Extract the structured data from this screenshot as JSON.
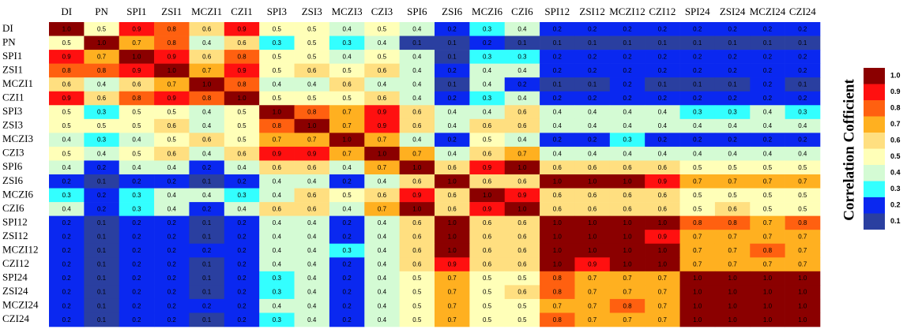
{
  "chart_data": {
    "type": "heatmap",
    "legend_title": "Correlation Cofficient",
    "categories": [
      "DI",
      "PN",
      "SPI1",
      "ZSI1",
      "MCZI1",
      "CZI1",
      "SPI3",
      "ZSI3",
      "MCZI3",
      "CZI3",
      "SPI6",
      "ZSI6",
      "MCZI6",
      "CZI6",
      "SPI12",
      "ZSI12",
      "MCZI12",
      "CZI12",
      "SPI24",
      "ZSI24",
      "MCZI24",
      "CZI24"
    ],
    "colorbar": [
      {
        "value": 1.0,
        "label": "1.0",
        "color": "#8b0000"
      },
      {
        "value": 0.9,
        "label": "0.9",
        "color": "#ff1010"
      },
      {
        "value": 0.8,
        "label": "0.8",
        "color": "#ff6010"
      },
      {
        "value": 0.7,
        "label": "0.7",
        "color": "#ffb020"
      },
      {
        "value": 0.6,
        "label": "0.6",
        "color": "#ffdf80"
      },
      {
        "value": 0.5,
        "label": "0.5",
        "color": "#ffffb8"
      },
      {
        "value": 0.4,
        "label": "0.4",
        "color": "#d4fbd4"
      },
      {
        "value": 0.3,
        "label": "0.3",
        "color": "#33ffff"
      },
      {
        "value": 0.2,
        "label": "0.2",
        "color": "#0a28f0"
      },
      {
        "value": 0.1,
        "label": "0.1",
        "color": "#2a3fa0"
      }
    ],
    "values": [
      [
        1.0,
        0.5,
        0.9,
        0.8,
        0.6,
        0.9,
        0.5,
        0.5,
        0.4,
        0.5,
        0.4,
        0.2,
        0.3,
        0.4,
        0.2,
        0.2,
        0.2,
        0.2,
        0.2,
        0.2,
        0.2,
        0.2
      ],
      [
        0.5,
        1.0,
        0.7,
        0.8,
        0.4,
        0.6,
        0.3,
        0.5,
        0.3,
        0.4,
        0.1,
        0.1,
        0.2,
        0.1,
        0.1,
        0.1,
        0.1,
        0.1,
        0.1,
        0.1,
        0.1,
        0.1
      ],
      [
        0.9,
        0.7,
        1.0,
        0.9,
        0.6,
        0.8,
        0.5,
        0.5,
        0.4,
        0.5,
        0.4,
        0.1,
        0.3,
        0.3,
        0.2,
        0.2,
        0.2,
        0.2,
        0.2,
        0.2,
        0.2,
        0.2
      ],
      [
        0.8,
        0.8,
        0.9,
        1.0,
        0.7,
        0.9,
        0.5,
        0.6,
        0.5,
        0.6,
        0.4,
        0.2,
        0.4,
        0.4,
        0.2,
        0.2,
        0.2,
        0.2,
        0.2,
        0.2,
        0.2,
        0.2
      ],
      [
        0.6,
        0.4,
        0.6,
        0.7,
        1.0,
        0.8,
        0.4,
        0.4,
        0.6,
        0.4,
        0.4,
        0.1,
        0.4,
        0.2,
        0.1,
        0.1,
        0.2,
        0.1,
        0.1,
        0.1,
        0.2,
        0.1
      ],
      [
        0.9,
        0.6,
        0.8,
        0.9,
        0.8,
        1.0,
        0.5,
        0.5,
        0.5,
        0.6,
        0.4,
        0.2,
        0.3,
        0.4,
        0.2,
        0.2,
        0.2,
        0.2,
        0.2,
        0.2,
        0.2,
        0.2
      ],
      [
        0.5,
        0.3,
        0.5,
        0.5,
        0.4,
        0.5,
        1.0,
        0.8,
        0.7,
        0.9,
        0.6,
        0.4,
        0.4,
        0.6,
        0.4,
        0.4,
        0.4,
        0.4,
        0.3,
        0.3,
        0.4,
        0.3
      ],
      [
        0.5,
        0.5,
        0.5,
        0.6,
        0.4,
        0.5,
        0.8,
        1.0,
        0.7,
        0.9,
        0.6,
        0.4,
        0.6,
        0.6,
        0.4,
        0.4,
        0.4,
        0.4,
        0.4,
        0.4,
        0.4,
        0.4
      ],
      [
        0.4,
        0.3,
        0.4,
        0.5,
        0.6,
        0.5,
        0.7,
        0.7,
        1.0,
        0.7,
        0.4,
        0.2,
        0.5,
        0.4,
        0.2,
        0.2,
        0.3,
        0.2,
        0.2,
        0.2,
        0.2,
        0.2
      ],
      [
        0.5,
        0.4,
        0.5,
        0.6,
        0.4,
        0.6,
        0.9,
        0.9,
        0.7,
        1.0,
        0.7,
        0.4,
        0.6,
        0.7,
        0.4,
        0.4,
        0.4,
        0.4,
        0.4,
        0.4,
        0.4,
        0.4
      ],
      [
        0.4,
        0.2,
        0.4,
        0.4,
        0.2,
        0.4,
        0.6,
        0.6,
        0.4,
        0.7,
        1.0,
        0.6,
        0.9,
        1.0,
        0.6,
        0.6,
        0.6,
        0.6,
        0.5,
        0.5,
        0.5,
        0.5
      ],
      [
        0.2,
        0.1,
        0.2,
        0.2,
        0.1,
        0.2,
        0.4,
        0.4,
        0.2,
        0.4,
        0.6,
        1.0,
        0.6,
        0.6,
        1.0,
        1.0,
        1.0,
        0.9,
        0.7,
        0.7,
        0.7,
        0.7
      ],
      [
        0.3,
        0.2,
        0.3,
        0.4,
        0.4,
        0.3,
        0.4,
        0.6,
        0.5,
        0.6,
        0.9,
        0.6,
        1.0,
        0.9,
        0.6,
        0.6,
        0.6,
        0.6,
        0.5,
        0.5,
        0.5,
        0.5
      ],
      [
        0.4,
        0.2,
        0.3,
        0.4,
        0.2,
        0.4,
        0.6,
        0.6,
        0.4,
        0.7,
        1.0,
        0.6,
        0.9,
        1.0,
        0.6,
        0.6,
        0.6,
        0.6,
        0.5,
        0.6,
        0.5,
        0.5
      ],
      [
        0.2,
        0.1,
        0.2,
        0.2,
        0.1,
        0.2,
        0.4,
        0.4,
        0.2,
        0.4,
        0.6,
        1.0,
        0.6,
        0.6,
        1.0,
        1.0,
        1.0,
        1.0,
        0.8,
        0.8,
        0.7,
        0.8
      ],
      [
        0.2,
        0.1,
        0.2,
        0.2,
        0.1,
        0.2,
        0.4,
        0.4,
        0.2,
        0.4,
        0.6,
        1.0,
        0.6,
        0.6,
        1.0,
        1.0,
        1.0,
        0.9,
        0.7,
        0.7,
        0.7,
        0.7
      ],
      [
        0.2,
        0.1,
        0.2,
        0.2,
        0.2,
        0.2,
        0.4,
        0.4,
        0.3,
        0.4,
        0.6,
        1.0,
        0.6,
        0.6,
        1.0,
        1.0,
        1.0,
        1.0,
        0.7,
        0.7,
        0.8,
        0.7
      ],
      [
        0.2,
        0.1,
        0.2,
        0.2,
        0.1,
        0.2,
        0.4,
        0.4,
        0.2,
        0.4,
        0.6,
        0.9,
        0.6,
        0.6,
        1.0,
        0.9,
        1.0,
        1.0,
        0.7,
        0.7,
        0.7,
        0.7
      ],
      [
        0.2,
        0.1,
        0.2,
        0.2,
        0.1,
        0.2,
        0.3,
        0.4,
        0.2,
        0.4,
        0.5,
        0.7,
        0.5,
        0.5,
        0.8,
        0.7,
        0.7,
        0.7,
        1.0,
        1.0,
        1.0,
        1.0
      ],
      [
        0.2,
        0.1,
        0.2,
        0.2,
        0.1,
        0.2,
        0.3,
        0.4,
        0.2,
        0.4,
        0.5,
        0.7,
        0.5,
        0.6,
        0.8,
        0.7,
        0.7,
        0.7,
        1.0,
        1.0,
        1.0,
        1.0
      ],
      [
        0.2,
        0.1,
        0.2,
        0.2,
        0.2,
        0.2,
        0.4,
        0.4,
        0.2,
        0.4,
        0.5,
        0.7,
        0.5,
        0.5,
        0.7,
        0.7,
        0.8,
        0.7,
        1.0,
        1.0,
        1.0,
        1.0
      ],
      [
        0.2,
        0.1,
        0.2,
        0.2,
        0.1,
        0.2,
        0.3,
        0.4,
        0.2,
        0.4,
        0.5,
        0.7,
        0.5,
        0.5,
        0.8,
        0.7,
        0.7,
        0.7,
        1.0,
        1.0,
        1.0,
        1.0
      ]
    ],
    "value_labels": [
      [
        "1.0",
        "0.5",
        "0.9",
        "0.8",
        "0.6",
        "0.9",
        "0.5",
        "0.5",
        "0.4",
        "0.5",
        "0.4",
        "0.2",
        "0.3",
        "0.4",
        "0.2",
        "0.2",
        "0.2",
        "0.2",
        "0.2",
        "0.2",
        "0.2",
        "0.2"
      ],
      [
        "0.5",
        "1.0",
        "0.7",
        "0.8",
        "0.4",
        "0.6",
        "0.3",
        "0.5",
        "0.3",
        "0.4",
        "0.1",
        "0.1",
        "0.2",
        "0.1",
        "0.1",
        "0.1",
        "0.1",
        "0.1",
        "0.1",
        "0.1",
        "0.1",
        "0.1"
      ],
      [
        "0.9",
        "0.7",
        "1.0",
        "0.9",
        "0.6",
        "0.8",
        "0.5",
        "0.5",
        "0.4",
        "0.5",
        "0.4",
        "0.1",
        "0.3",
        "0.3",
        "0.2",
        "0.2",
        "0.2",
        "0.2",
        "0.2",
        "0.2",
        "0.2",
        "0.2"
      ],
      [
        "0.8",
        "0.8",
        "0.9",
        "1.0",
        "0.7",
        "0.9",
        "0.5",
        "0.6",
        "0.5",
        "0.6",
        "0.4",
        "0.2",
        "0.4",
        "0.4",
        "0.2",
        "0.2",
        "0.2",
        "0.2",
        "0.2",
        "0.2",
        "0.2",
        "0.2"
      ],
      [
        "0.6",
        "0.4",
        "0.6",
        "0.7",
        "1.0",
        "0.8",
        "0.4",
        "0.4",
        "0.6",
        "0.4",
        "0.4",
        "0.1",
        "0.4",
        "0.2",
        "0.1",
        "0.1",
        "0.2",
        "0.1",
        "0.1",
        "0.1",
        "0.2",
        "0.1"
      ],
      [
        "0.9",
        "0.6",
        "0.8",
        "0.9",
        "0.8",
        "1.0",
        "0.5",
        "0.5",
        "0.5",
        "0.6",
        "0.4",
        "0.2",
        "0.3",
        "0.4",
        "0.2",
        "0.2",
        "0.2",
        "0.2",
        "0.2",
        "0.2",
        "0.2",
        "0.2"
      ],
      [
        "0.5",
        "0.3",
        "0.5",
        "0.5",
        "0.4",
        "0.5",
        "1.0",
        "0.8",
        "0.7",
        "0.9",
        "0.6",
        "0.4",
        "0.4",
        "0.6",
        "0.4",
        "0.4",
        "0.4",
        "0.4",
        "0.3",
        "0.3",
        "0.4",
        "0.3"
      ],
      [
        "0.5",
        "0.5",
        "0.5",
        "0.6",
        "0.4",
        "0.5",
        "0.8",
        "1.0",
        "0.7",
        "0.9",
        "0.6",
        "0.4",
        "0.6",
        "0.6",
        "0.4",
        "0.4",
        "0.4",
        "0.4",
        "0.4",
        "0.4",
        "0.4",
        "0.4"
      ],
      [
        "0.4",
        "0.3",
        "0.4",
        "0.5",
        "0.6",
        "0.5",
        "0.7",
        "0.7",
        "1.0",
        "0.7",
        "0.4",
        "0.2",
        "0.5",
        "0.4",
        "0.2",
        "0.2",
        "0.3",
        "0.2",
        "0.2",
        "0.2",
        "0.2",
        "0.2"
      ],
      [
        "0.5",
        "0.4",
        "0.5",
        "0.6",
        "0.4",
        "0.6",
        "0.9",
        "0.9",
        "0.7",
        "1.0",
        "0.7",
        "0.4",
        "0.6",
        "0.7",
        "0.4",
        "0.4",
        "0.4",
        "0.4",
        "0.4",
        "0.4",
        "0.4",
        "0.4"
      ],
      [
        "0.4",
        "0.2",
        "0.4",
        "0.4",
        "0.2",
        "0.4",
        "0.6",
        "0.6",
        "0.4",
        "0.7",
        "1.0",
        "0.6",
        "0.9",
        "1.0",
        "0.6",
        "0.6",
        "0.6",
        "0.6",
        "0.5",
        "0.5",
        "0.5",
        "0.5"
      ],
      [
        "0.2",
        "0.1",
        "0.2",
        "0.2",
        "0.1",
        "0.2",
        "0.4",
        "0.4",
        "0.2",
        "0.4",
        "0.6",
        "1.0",
        "0.6",
        "0.6",
        "1.0",
        "1.0",
        "1.0",
        "0.9",
        "0.7",
        "0.7",
        "0.7",
        "0.7"
      ],
      [
        "0.3",
        "0.2",
        "0.3",
        "0.4",
        "0.4",
        "0.3",
        "0.4",
        "0.6",
        "0.5",
        "0.6",
        "0.9",
        "0.6",
        "1.0",
        "0.9",
        "0.6",
        "0.6",
        "0.6",
        "0.6",
        "0.5",
        "0.5",
        "0.5",
        "0.5"
      ],
      [
        "0.4",
        "0.2",
        "0.3",
        "0.4",
        "0.2",
        "0.4",
        "0.6",
        "0.6",
        "0.4",
        "0.7",
        "1.0",
        "0.6",
        "0.9",
        "1.0",
        "0.6",
        "0.6",
        "0.6",
        "0.6",
        "0.5",
        "0.6",
        "0.5",
        "0.5"
      ],
      [
        "0.2",
        "0.1",
        "0.2",
        "0.2",
        "0.1",
        "0.2",
        "0.4",
        "0.4",
        "0.2",
        "0.4",
        "0.6",
        "1.0",
        "0.6",
        "0.6",
        "1.0",
        "1.0",
        "1.0",
        "1.0",
        "0.8",
        "0.8",
        "0.7",
        "0.8"
      ],
      [
        "0.2",
        "0.1",
        "0.2",
        "0.2",
        "0.1",
        "0.2",
        "0.4",
        "0.4",
        "0.2",
        "0.4",
        "0.6",
        "1.0",
        "0.6",
        "0.6",
        "1.0",
        "1.0",
        "1.0",
        "0.9",
        "0.7",
        "0.7",
        "0.7",
        "0.7"
      ],
      [
        "0.2",
        "0.1",
        "0.2",
        "0.2",
        "0.2",
        "0.2",
        "0.4",
        "0.4",
        "0.3",
        "0.4",
        "0.6",
        "1.0",
        "0.6",
        "0.6",
        "1.0",
        "1.0",
        "1.0",
        "1.0",
        "0.7",
        "0.7",
        "0.8",
        "0.7"
      ],
      [
        "0.2",
        "0.1",
        "0.2",
        "0.2",
        "0.1",
        "0.2",
        "0.4",
        "0.4",
        "0.2",
        "0.4",
        "0.6",
        "0.9",
        "0.6",
        "0.6",
        "1.0",
        "0.9",
        "1.0",
        "1.0",
        "0.7",
        "0.7",
        "0.7",
        "0.7"
      ],
      [
        "0.2",
        "0.1",
        "0.2",
        "0.2",
        "0.1",
        "0.2",
        "0.3",
        "0.4",
        "0.2",
        "0.4",
        "0.5",
        "0.7",
        "0.5",
        "0.5",
        "0.8",
        "0.7",
        "0.7",
        "0.7",
        "1.0",
        "1.0",
        "1.0",
        "1.0"
      ],
      [
        "0.2",
        "0.1",
        "0.2",
        "0.2",
        "0.1",
        "0.2",
        "0.3",
        "0.4",
        "0.2",
        "0.4",
        "0.5",
        "0.7",
        "0.5",
        "0.6",
        "0.8",
        "0.7",
        "0.7",
        "0.7",
        "1.0",
        "1.0",
        "1.0",
        "1.0"
      ],
      [
        "0.2",
        "0.1",
        "0.2",
        "0.2",
        "0.2",
        "0.2",
        "0.4",
        "0.4",
        "0.2",
        "0.4",
        "0.5",
        "0.7",
        "0.5",
        "0.5",
        "0.7",
        "0.7",
        "0.8",
        "0.7",
        "1.0",
        "1.0",
        "1.0",
        "1.0"
      ],
      [
        "0.2",
        "0.1",
        "0.2",
        "0.2",
        "0.1",
        "0.2",
        "0.3",
        "0.4",
        "0.2",
        "0.4",
        "0.5",
        "0.7",
        "0.5",
        "0.5",
        "0.8",
        "0.7",
        "0.7",
        "0.7",
        "1.0",
        "1.0",
        "1.0",
        "1.0"
      ]
    ]
  }
}
